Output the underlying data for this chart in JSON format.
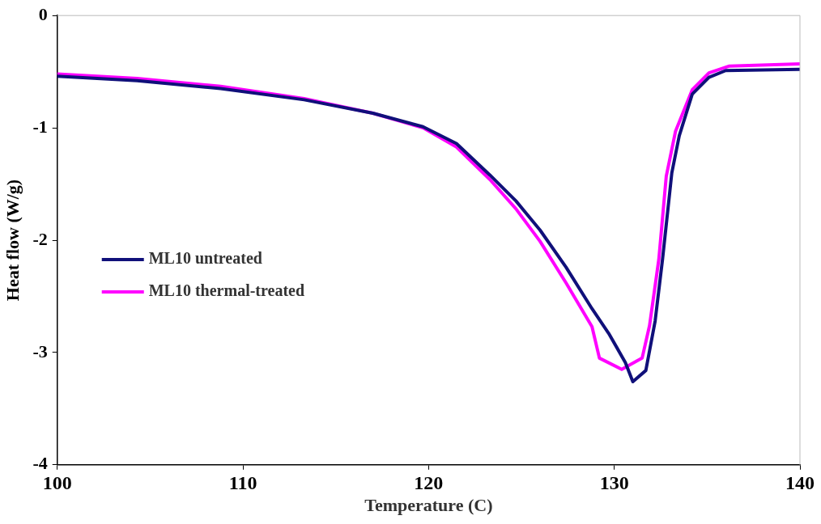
{
  "chart_data": {
    "type": "line",
    "xlabel": "Temperature (C)",
    "ylabel": "Heat flow (W/g)",
    "xlim": [
      100,
      140
    ],
    "xticks": [
      100,
      110,
      120,
      130,
      140
    ],
    "ylim": [
      -4,
      0
    ],
    "yticks": [
      -4,
      -3,
      -2,
      -1,
      0
    ],
    "legend": "left",
    "marker": "none",
    "line_style": "solid",
    "grid": false,
    "series": [
      {
        "name": "ML10 untreated",
        "color": "#10107a",
        "x": [
          100,
          104.3,
          108.8,
          113.3,
          117.0,
          119.7,
          121.5,
          123.3,
          124.7,
          126.0,
          127.4,
          128.8,
          129.7,
          130.6,
          131.0,
          131.7,
          132.2,
          132.6,
          133.1,
          133.5,
          134.2,
          135.1,
          136.0,
          140
        ],
        "values": [
          -0.54,
          -0.58,
          -0.65,
          -0.75,
          -0.87,
          -0.99,
          -1.14,
          -1.42,
          -1.65,
          -1.91,
          -2.24,
          -2.61,
          -2.83,
          -3.09,
          -3.26,
          -3.16,
          -2.72,
          -2.17,
          -1.4,
          -1.07,
          -0.7,
          -0.55,
          -0.49,
          -0.48
        ]
      },
      {
        "name": "ML10 thermal-treated",
        "color": "#ff00ff",
        "x": [
          100,
          104.3,
          108.8,
          113.3,
          117.0,
          119.7,
          121.5,
          123.3,
          124.7,
          126.0,
          127.4,
          128.8,
          129.2,
          130.4,
          131.5,
          131.9,
          132.4,
          132.8,
          133.3,
          134.2,
          135.1,
          136.2,
          140
        ],
        "values": [
          -0.52,
          -0.56,
          -0.63,
          -0.74,
          -0.87,
          -1.0,
          -1.17,
          -1.46,
          -1.72,
          -2.01,
          -2.38,
          -2.77,
          -3.05,
          -3.15,
          -3.05,
          -2.76,
          -2.17,
          -1.43,
          -1.03,
          -0.66,
          -0.51,
          -0.45,
          -0.43
        ]
      }
    ]
  }
}
